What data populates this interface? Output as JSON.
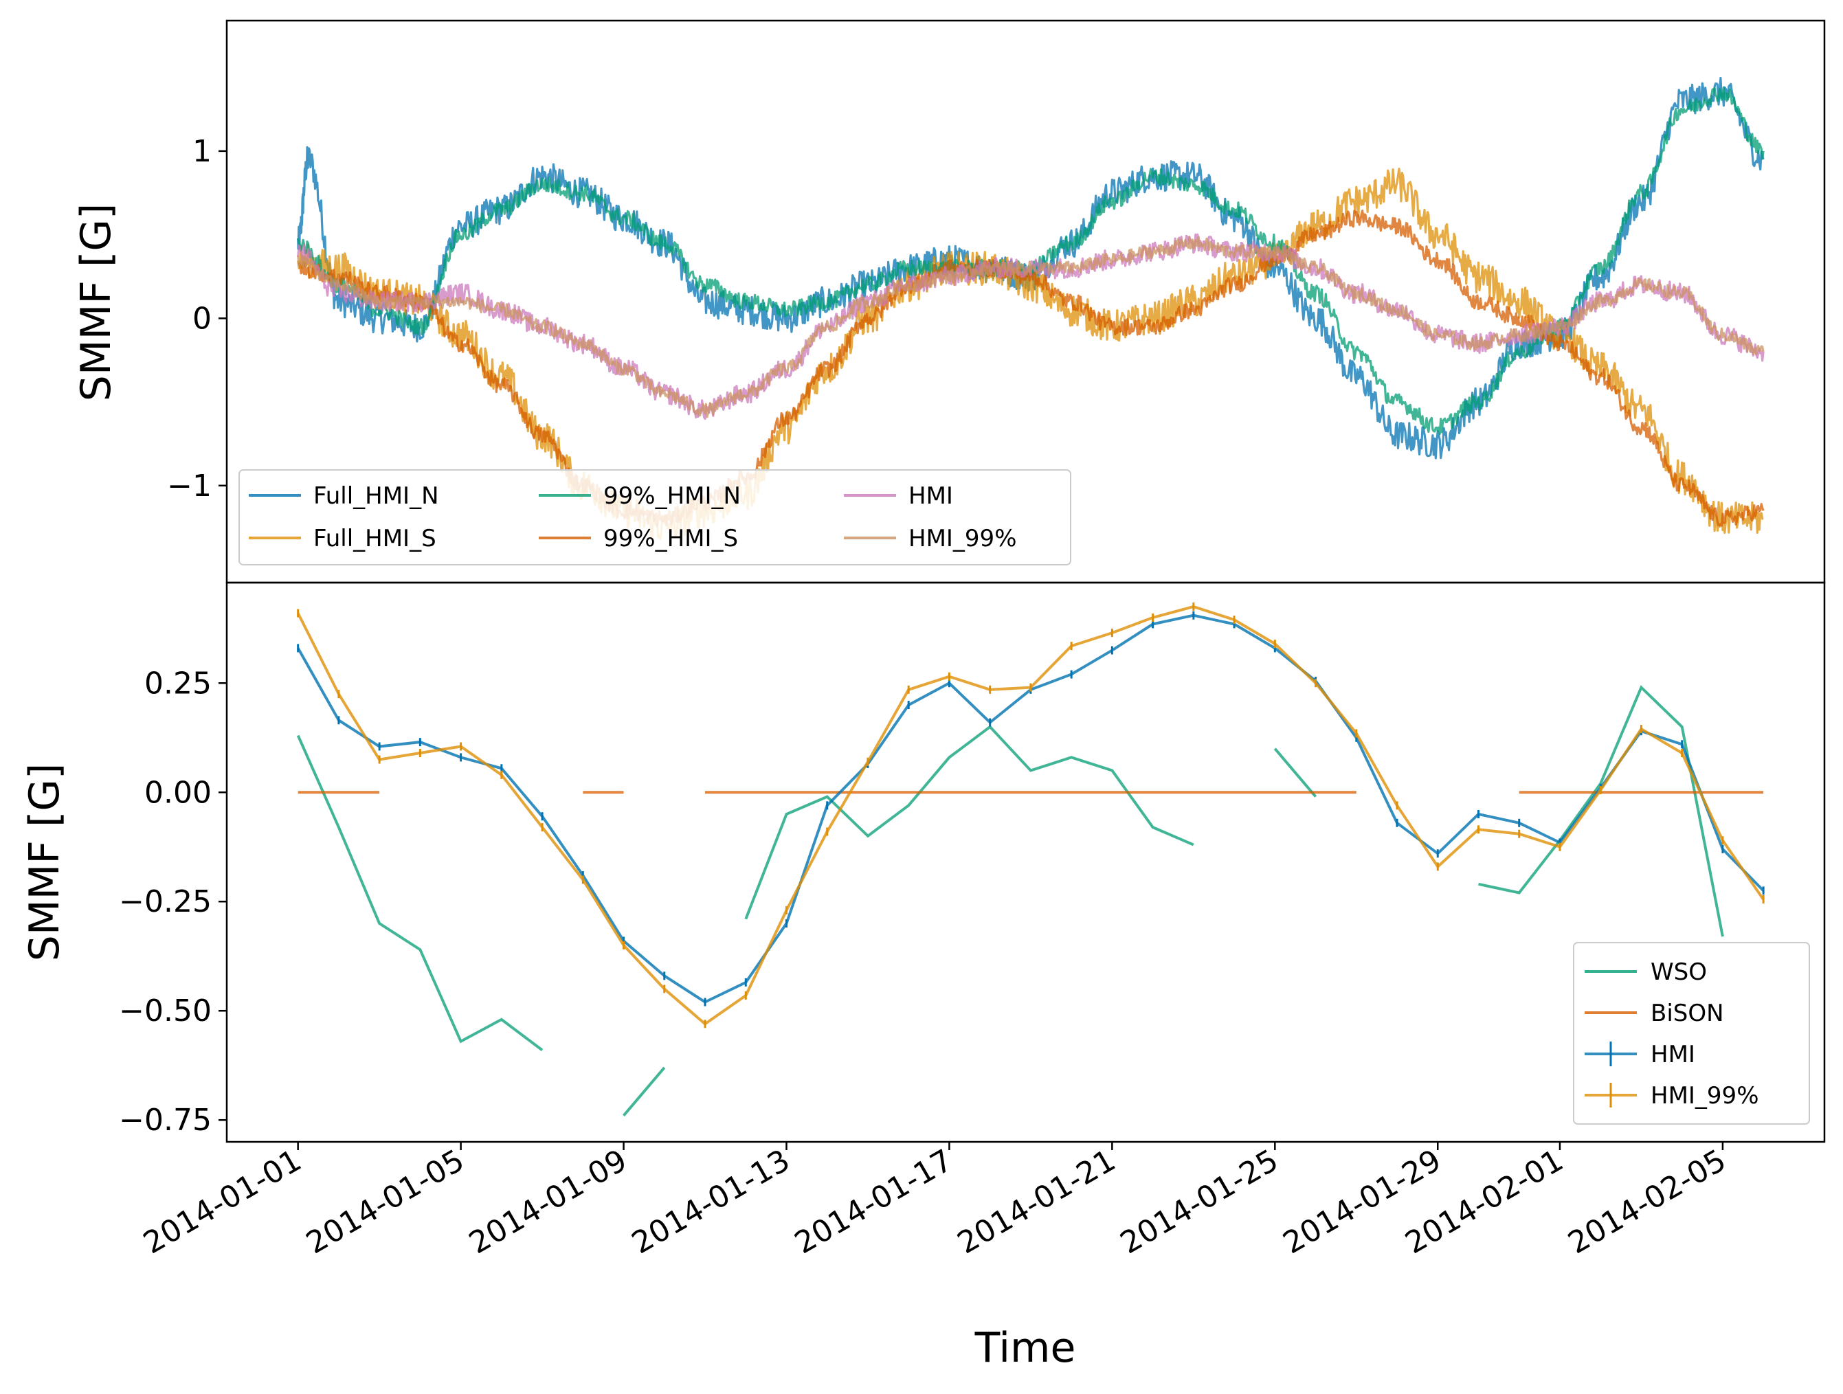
{
  "chart_data": [
    {
      "type": "line",
      "panel": "top",
      "ylabel": "SMMF [G]",
      "xlabel": "",
      "ylim": [
        -1.58,
        1.78
      ],
      "xlim": [
        "2013-12-30T06:00",
        "2014-02-07T12:00"
      ],
      "yticks": [
        -1,
        0,
        1
      ],
      "ytick_labels": [
        "−1",
        "0",
        "1"
      ],
      "legend_position": "lower-left",
      "legend_columns": 3,
      "series": [
        {
          "name": "Full_HMI_N",
          "color": "#0173b2",
          "x": [
            "2014-01-01",
            "2014-01-01T06:00",
            "2014-01-02",
            "2014-01-03",
            "2014-01-04",
            "2014-01-05",
            "2014-01-06",
            "2014-01-07",
            "2014-01-08",
            "2014-01-09",
            "2014-01-10",
            "2014-01-11",
            "2014-01-12",
            "2014-01-13",
            "2014-01-14",
            "2014-01-15",
            "2014-01-16",
            "2014-01-17",
            "2014-01-18",
            "2014-01-19",
            "2014-01-20",
            "2014-01-21",
            "2014-01-22",
            "2014-01-23",
            "2014-01-24",
            "2014-01-25",
            "2014-01-26",
            "2014-01-27",
            "2014-01-28",
            "2014-01-29",
            "2014-01-30",
            "2014-01-31",
            "2014-02-01",
            "2014-02-02",
            "2014-02-03",
            "2014-02-04",
            "2014-02-05",
            "2014-02-06"
          ],
          "y": [
            0.45,
            0.95,
            0.1,
            0.0,
            -0.05,
            0.55,
            0.65,
            0.85,
            0.75,
            0.6,
            0.45,
            0.1,
            0.05,
            0.0,
            0.1,
            0.2,
            0.3,
            0.35,
            0.3,
            0.25,
            0.45,
            0.75,
            0.85,
            0.85,
            0.6,
            0.3,
            0.0,
            -0.35,
            -0.7,
            -0.75,
            -0.5,
            -0.15,
            -0.1,
            0.25,
            0.7,
            1.3,
            1.35,
            0.95
          ]
        },
        {
          "name": "Full_HMI_S",
          "color": "#de8f05",
          "x": [
            "2014-01-01",
            "2014-01-02",
            "2014-01-03",
            "2014-01-04",
            "2014-01-05",
            "2014-01-06",
            "2014-01-07",
            "2014-01-08",
            "2014-01-09",
            "2014-01-10",
            "2014-01-11",
            "2014-01-12",
            "2014-01-13",
            "2014-01-14",
            "2014-01-15",
            "2014-01-16",
            "2014-01-17",
            "2014-01-18",
            "2014-01-19",
            "2014-01-20",
            "2014-01-21",
            "2014-01-22",
            "2014-01-23",
            "2014-01-24",
            "2014-01-25",
            "2014-01-26",
            "2014-01-27",
            "2014-01-28",
            "2014-01-29",
            "2014-01-30",
            "2014-01-31",
            "2014-02-01",
            "2014-02-02",
            "2014-02-03",
            "2014-02-04",
            "2014-02-05",
            "2014-02-06"
          ],
          "y": [
            0.35,
            0.3,
            0.15,
            0.1,
            -0.1,
            -0.35,
            -0.7,
            -1.0,
            -1.15,
            -1.25,
            -1.15,
            -1.05,
            -0.65,
            -0.3,
            0.0,
            0.2,
            0.3,
            0.3,
            0.2,
            0.05,
            -0.05,
            0.0,
            0.1,
            0.25,
            0.35,
            0.55,
            0.7,
            0.8,
            0.5,
            0.25,
            0.1,
            -0.1,
            -0.3,
            -0.55,
            -0.95,
            -1.2,
            -1.2
          ]
        },
        {
          "name": "99%_HMI_N",
          "color": "#029e73",
          "x": [
            "2014-01-01",
            "2014-01-02",
            "2014-01-03",
            "2014-01-04",
            "2014-01-05",
            "2014-01-06",
            "2014-01-07",
            "2014-01-08",
            "2014-01-09",
            "2014-01-10",
            "2014-01-11",
            "2014-01-12",
            "2014-01-13",
            "2014-01-14",
            "2014-01-15",
            "2014-01-16",
            "2014-01-17",
            "2014-01-18",
            "2014-01-19",
            "2014-01-20",
            "2014-01-21",
            "2014-01-22",
            "2014-01-23",
            "2014-01-24",
            "2014-01-25",
            "2014-01-26",
            "2014-01-27",
            "2014-01-28",
            "2014-01-29",
            "2014-01-30",
            "2014-01-31",
            "2014-02-01",
            "2014-02-02",
            "2014-02-03",
            "2014-02-04",
            "2014-02-05",
            "2014-02-06"
          ],
          "y": [
            0.45,
            0.2,
            0.05,
            -0.05,
            0.5,
            0.65,
            0.8,
            0.75,
            0.6,
            0.45,
            0.2,
            0.1,
            0.05,
            0.1,
            0.2,
            0.3,
            0.3,
            0.3,
            0.3,
            0.45,
            0.7,
            0.85,
            0.8,
            0.65,
            0.45,
            0.15,
            -0.2,
            -0.5,
            -0.65,
            -0.5,
            -0.2,
            -0.05,
            0.3,
            0.75,
            1.25,
            1.35,
            1.0
          ]
        },
        {
          "name": "99%_HMI_S",
          "color": "#d55e00",
          "x": [
            "2014-01-01",
            "2014-01-02",
            "2014-01-03",
            "2014-01-04",
            "2014-01-05",
            "2014-01-06",
            "2014-01-07",
            "2014-01-08",
            "2014-01-09",
            "2014-01-10",
            "2014-01-11",
            "2014-01-12",
            "2014-01-13",
            "2014-01-14",
            "2014-01-15",
            "2014-01-16",
            "2014-01-17",
            "2014-01-18",
            "2014-01-19",
            "2014-01-20",
            "2014-01-21",
            "2014-01-22",
            "2014-01-23",
            "2014-01-24",
            "2014-01-25",
            "2014-01-26",
            "2014-01-27",
            "2014-01-28",
            "2014-01-29",
            "2014-01-30",
            "2014-01-31",
            "2014-02-01",
            "2014-02-02",
            "2014-02-03",
            "2014-02-04",
            "2014-02-05",
            "2014-02-06"
          ],
          "y": [
            0.3,
            0.25,
            0.15,
            0.1,
            -0.15,
            -0.4,
            -0.7,
            -1.0,
            -1.15,
            -1.2,
            -1.1,
            -0.95,
            -0.6,
            -0.3,
            0.0,
            0.2,
            0.3,
            0.3,
            0.25,
            0.1,
            -0.05,
            -0.05,
            0.05,
            0.2,
            0.35,
            0.5,
            0.6,
            0.55,
            0.35,
            0.1,
            0.0,
            -0.15,
            -0.35,
            -0.65,
            -1.0,
            -1.2,
            -1.15
          ]
        },
        {
          "name": "HMI",
          "color": "#cc78bc",
          "x": [
            "2014-01-01",
            "2014-01-02",
            "2014-01-03",
            "2014-01-04",
            "2014-01-05",
            "2014-01-06",
            "2014-01-07",
            "2014-01-08",
            "2014-01-09",
            "2014-01-10",
            "2014-01-11",
            "2014-01-12",
            "2014-01-13",
            "2014-01-14",
            "2014-01-15",
            "2014-01-16",
            "2014-01-17",
            "2014-01-18",
            "2014-01-19",
            "2014-01-20",
            "2014-01-21",
            "2014-01-22",
            "2014-01-23",
            "2014-01-24",
            "2014-01-25",
            "2014-01-26",
            "2014-01-27",
            "2014-01-28",
            "2014-01-29",
            "2014-01-30",
            "2014-01-31",
            "2014-02-01",
            "2014-02-02",
            "2014-02-03",
            "2014-02-04",
            "2014-02-05",
            "2014-02-06"
          ],
          "y": [
            0.4,
            0.15,
            0.1,
            0.1,
            0.15,
            0.05,
            -0.05,
            -0.15,
            -0.3,
            -0.45,
            -0.55,
            -0.45,
            -0.3,
            -0.05,
            0.1,
            0.2,
            0.25,
            0.3,
            0.3,
            0.3,
            0.35,
            0.4,
            0.45,
            0.4,
            0.4,
            0.3,
            0.15,
            0.05,
            -0.1,
            -0.15,
            -0.1,
            -0.05,
            0.1,
            0.2,
            0.15,
            -0.1,
            -0.2
          ]
        },
        {
          "name": "HMI_99%",
          "color": "#ca9161",
          "x": [
            "2014-01-01",
            "2014-01-02",
            "2014-01-03",
            "2014-01-04",
            "2014-01-05",
            "2014-01-06",
            "2014-01-07",
            "2014-01-08",
            "2014-01-09",
            "2014-01-10",
            "2014-01-11",
            "2014-01-12",
            "2014-01-13",
            "2014-01-14",
            "2014-01-15",
            "2014-01-16",
            "2014-01-17",
            "2014-01-18",
            "2014-01-19",
            "2014-01-20",
            "2014-01-21",
            "2014-01-22",
            "2014-01-23",
            "2014-01-24",
            "2014-01-25",
            "2014-01-26",
            "2014-01-27",
            "2014-01-28",
            "2014-01-29",
            "2014-01-30",
            "2014-01-31",
            "2014-02-01",
            "2014-02-02",
            "2014-02-03",
            "2014-02-04",
            "2014-02-05",
            "2014-02-06"
          ],
          "y": [
            0.35,
            0.2,
            0.1,
            0.1,
            0.1,
            0.05,
            -0.05,
            -0.15,
            -0.3,
            -0.45,
            -0.55,
            -0.45,
            -0.3,
            -0.05,
            0.1,
            0.2,
            0.25,
            0.3,
            0.3,
            0.3,
            0.35,
            0.4,
            0.45,
            0.4,
            0.4,
            0.3,
            0.15,
            0.05,
            -0.1,
            -0.15,
            -0.1,
            -0.05,
            0.1,
            0.2,
            0.15,
            -0.1,
            -0.2
          ]
        }
      ]
    },
    {
      "type": "line",
      "panel": "bottom",
      "ylabel": "SMMF [G]",
      "xlabel": "Time",
      "ylim": [
        -0.8,
        0.48
      ],
      "xlim": [
        "2013-12-30T06:00",
        "2014-02-07T12:00"
      ],
      "yticks": [
        -0.75,
        -0.5,
        -0.25,
        0.0,
        0.25
      ],
      "ytick_labels": [
        "−0.75",
        "−0.50",
        "−0.25",
        "0.00",
        "0.25"
      ],
      "xtick_labels": [
        "2014-01-01",
        "2014-01-05",
        "2014-01-09",
        "2014-01-13",
        "2014-01-17",
        "2014-01-21",
        "2014-01-25",
        "2014-01-29",
        "2014-02-01",
        "2014-02-05"
      ],
      "xtick_dates": [
        "2014-01-01",
        "2014-01-05",
        "2014-01-09",
        "2014-01-13",
        "2014-01-17",
        "2014-01-21",
        "2014-01-25",
        "2014-01-29",
        "2014-02-01",
        "2014-02-05"
      ],
      "legend_position": "lower-right",
      "series": [
        {
          "name": "WSO",
          "color": "#029e73",
          "segments": [
            {
              "x": [
                "2014-01-01",
                "2014-01-02",
                "2014-01-03",
                "2014-01-04",
                "2014-01-05",
                "2014-01-06",
                "2014-01-07"
              ],
              "y": [
                0.13,
                -0.08,
                -0.3,
                -0.36,
                -0.57,
                -0.52,
                -0.59
              ]
            },
            {
              "x": [
                "2014-01-09",
                "2014-01-10"
              ],
              "y": [
                -0.74,
                -0.63
              ]
            },
            {
              "x": [
                "2014-01-12",
                "2014-01-13",
                "2014-01-14",
                "2014-01-15",
                "2014-01-16",
                "2014-01-17",
                "2014-01-18",
                "2014-01-19",
                "2014-01-20",
                "2014-01-21",
                "2014-01-22",
                "2014-01-23"
              ],
              "y": [
                -0.29,
                -0.05,
                -0.01,
                -0.1,
                -0.03,
                0.08,
                0.15,
                0.05,
                0.08,
                0.05,
                -0.08,
                -0.12
              ]
            },
            {
              "x": [
                "2014-01-25",
                "2014-01-26"
              ],
              "y": [
                0.1,
                -0.01
              ]
            },
            {
              "x": [
                "2014-01-30",
                "2014-01-31",
                "2014-02-01",
                "2014-02-02",
                "2014-02-03",
                "2014-02-04",
                "2014-02-05"
              ],
              "y": [
                -0.21,
                -0.23,
                -0.11,
                0.02,
                0.24,
                0.15,
                -0.33
              ]
            }
          ]
        },
        {
          "name": "BiSON",
          "color": "#d55e00",
          "segments": [
            {
              "x": [
                "2014-01-01",
                "2014-01-03"
              ],
              "y": [
                0.0,
                0.0
              ]
            },
            {
              "x": [
                "2014-01-08",
                "2014-01-09"
              ],
              "y": [
                0.0,
                0.0
              ]
            },
            {
              "x": [
                "2014-01-11",
                "2014-01-27"
              ],
              "y": [
                0.0,
                0.0
              ]
            },
            {
              "x": [
                "2014-01-31",
                "2014-02-06"
              ],
              "y": [
                0.0,
                0.0
              ]
            }
          ]
        },
        {
          "name": "HMI",
          "color": "#0173b2",
          "x": [
            "2014-01-01",
            "2014-01-02",
            "2014-01-03",
            "2014-01-04",
            "2014-01-05",
            "2014-01-06",
            "2014-01-07",
            "2014-01-08",
            "2014-01-09",
            "2014-01-10",
            "2014-01-11",
            "2014-01-12",
            "2014-01-13",
            "2014-01-14",
            "2014-01-15",
            "2014-01-16",
            "2014-01-17",
            "2014-01-18",
            "2014-01-19",
            "2014-01-20",
            "2014-01-21",
            "2014-01-22",
            "2014-01-23",
            "2014-01-24",
            "2014-01-25",
            "2014-01-26",
            "2014-01-27",
            "2014-01-28",
            "2014-01-29",
            "2014-01-30",
            "2014-01-31",
            "2014-02-01",
            "2014-02-02",
            "2014-02-03",
            "2014-02-04",
            "2014-02-05",
            "2014-02-06"
          ],
          "y": [
            0.33,
            0.165,
            0.105,
            0.115,
            0.08,
            0.055,
            -0.055,
            -0.19,
            -0.34,
            -0.42,
            -0.48,
            -0.435,
            -0.3,
            -0.03,
            0.065,
            0.2,
            0.25,
            0.16,
            0.235,
            0.27,
            0.325,
            0.385,
            0.405,
            0.385,
            0.33,
            0.255,
            0.125,
            -0.07,
            -0.14,
            -0.05,
            -0.07,
            -0.115,
            0.01,
            0.14,
            0.11,
            -0.13,
            -0.225
          ]
        },
        {
          "name": "HMI_99%",
          "color": "#de8f05",
          "x": [
            "2014-01-01",
            "2014-01-02",
            "2014-01-03",
            "2014-01-04",
            "2014-01-05",
            "2014-01-06",
            "2014-01-07",
            "2014-01-08",
            "2014-01-09",
            "2014-01-10",
            "2014-01-11",
            "2014-01-12",
            "2014-01-13",
            "2014-01-14",
            "2014-01-15",
            "2014-01-16",
            "2014-01-17",
            "2014-01-18",
            "2014-01-19",
            "2014-01-20",
            "2014-01-21",
            "2014-01-22",
            "2014-01-23",
            "2014-01-24",
            "2014-01-25",
            "2014-01-26",
            "2014-01-27",
            "2014-01-28",
            "2014-01-29",
            "2014-01-30",
            "2014-01-31",
            "2014-02-01",
            "2014-02-02",
            "2014-02-03",
            "2014-02-04",
            "2014-02-05",
            "2014-02-06"
          ],
          "y": [
            0.41,
            0.225,
            0.075,
            0.09,
            0.105,
            0.04,
            -0.08,
            -0.2,
            -0.35,
            -0.45,
            -0.53,
            -0.465,
            -0.27,
            -0.09,
            0.07,
            0.235,
            0.265,
            0.235,
            0.24,
            0.335,
            0.365,
            0.4,
            0.425,
            0.395,
            0.34,
            0.25,
            0.135,
            -0.03,
            -0.17,
            -0.085,
            -0.095,
            -0.125,
            0.005,
            0.145,
            0.09,
            -0.11,
            -0.245
          ]
        }
      ]
    }
  ]
}
